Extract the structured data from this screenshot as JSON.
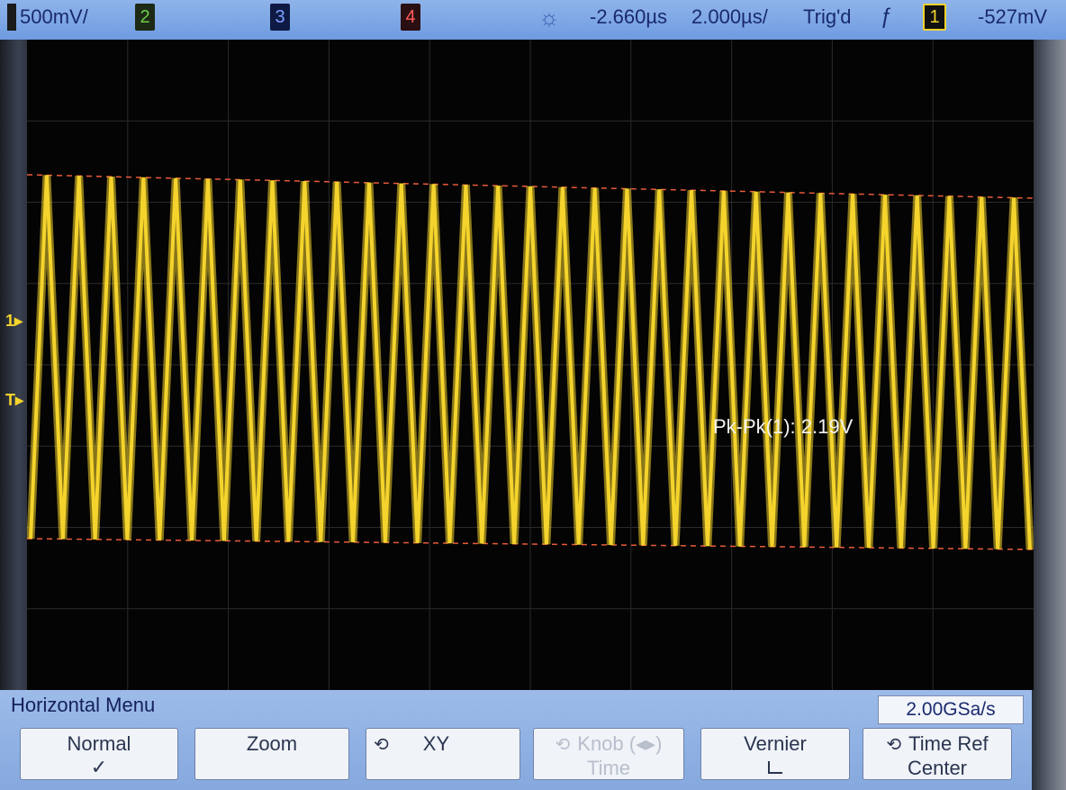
{
  "status_bar": {
    "ch1_scale": "500mV/",
    "ch2_label": "2",
    "ch3_label": "3",
    "ch4_label": "4",
    "delay": "-2.660µs",
    "time_scale": "2.000µs/",
    "trigger_status": "Trig'd",
    "trigger_source": "1",
    "trigger_level": "-527mV",
    "trigger_icon": "trigger-sun-icon",
    "edge_icon": "rising-edge-icon"
  },
  "markers": {
    "ch1": "1",
    "trigger": "T"
  },
  "measurement": {
    "text": "Pk-Pk(1): 2.19V"
  },
  "chart_data": {
    "type": "line",
    "series": [
      {
        "cycles": 31,
        "shape": "triangle",
        "color": "#f4d32c"
      }
    ],
    "cursor_levels": [
      "top",
      "bottom"
    ],
    "grid": true
  },
  "menu": {
    "title": "Horizontal Menu",
    "sample_rate": "2.00GSa/s",
    "softkeys": [
      {
        "label": "Normal",
        "sub": "✓"
      },
      {
        "label": "Zoom",
        "sub": ""
      },
      {
        "label": "XY",
        "sub": ""
      },
      {
        "label": "Knob (◂▸)",
        "sub": "Time"
      },
      {
        "label": "Vernier",
        "sub": ""
      },
      {
        "label": "Time Ref",
        "sub": "Center"
      }
    ]
  }
}
